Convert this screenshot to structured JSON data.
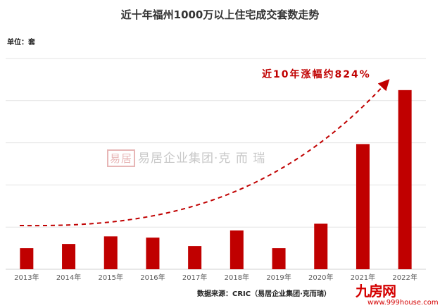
{
  "chart_data": {
    "type": "bar",
    "title": "近十年福州1000万以上住宅成交套数走势",
    "unit_label": "单位：套",
    "categories": [
      "2013年",
      "2014年",
      "2015年",
      "2016年",
      "2017年",
      "2018年",
      "2019年",
      "2020年",
      "2021年",
      "2022年"
    ],
    "values": [
      0.5,
      0.6,
      0.78,
      0.75,
      0.55,
      0.92,
      0.5,
      1.08,
      2.97,
      4.25
    ],
    "ylim": [
      0,
      5
    ],
    "grid": true,
    "bar_color": "#c00000",
    "annotation": "近10年涨幅约824%",
    "trend_line": "dashed-arrow",
    "source": "数据来源：CRIC（易居企业集团·克而瑞）"
  },
  "watermark": {
    "seal": "易居",
    "text": "易居企业集团·克 而 瑞"
  },
  "logo": {
    "text": "九房网",
    "url": "www.999house.com"
  }
}
